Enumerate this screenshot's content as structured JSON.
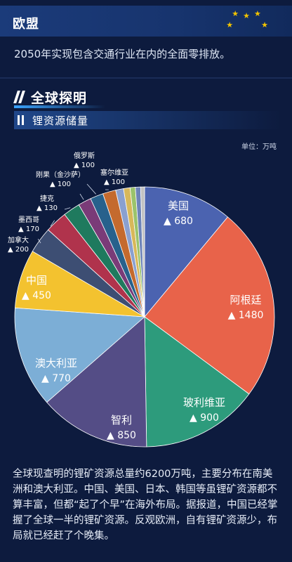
{
  "header": {
    "title": "欧盟",
    "description": "2050年实现包含交通行业在内的全面零排放。"
  },
  "section": {
    "title": "全球探明",
    "subtitle": "锂资源储量"
  },
  "colors": {
    "background": "#0d1b3e",
    "header_bar": "#1b3b7a",
    "stars": "#f2c300",
    "accent_blue": "#3aa3ff"
  },
  "chart_data": {
    "type": "pie",
    "unit": "单位：万吨",
    "start_angle_deg": 0,
    "direction": "clockwise",
    "slices": [
      {
        "label": "美国",
        "value": 680,
        "color": "#4b63b0",
        "label_inside": true
      },
      {
        "label": "阿根廷",
        "value": 1480,
        "color": "#e8634a",
        "label_inside": true
      },
      {
        "label": "玻利维亚",
        "value": 900,
        "color": "#2d9b7c",
        "label_inside": true
      },
      {
        "label": "智利",
        "value": 850,
        "color": "#544d86",
        "label_inside": true
      },
      {
        "label": "澳大利亚",
        "value": 770,
        "color": "#7caed6",
        "label_inside": true
      },
      {
        "label": "中国",
        "value": 450,
        "color": "#f3c22f",
        "label_inside": true
      },
      {
        "label": "加拿大",
        "value": 200,
        "color": "#3d4e73",
        "label_inside": false
      },
      {
        "label": "墨西哥",
        "value": 170,
        "color": "#b0334c",
        "label_inside": false
      },
      {
        "label": "捷克",
        "value": 130,
        "color": "#1f7a5e",
        "label_inside": false
      },
      {
        "label": "刚果（金沙萨）",
        "value": 100,
        "color": "#7a3b78",
        "label_inside": false
      },
      {
        "label": "俄罗斯",
        "value": 100,
        "color": "#27618c",
        "label_inside": false
      },
      {
        "label": "塞尔维亚",
        "value": 100,
        "color": "#c46a2e",
        "label_inside": false
      },
      {
        "value": 60,
        "color": "#8aa0cf"
      },
      {
        "value": 50,
        "color": "#d8b85a"
      },
      {
        "value": 40,
        "color": "#9bc36b"
      },
      {
        "value": 40,
        "color": "#6e84b8"
      },
      {
        "value": 30,
        "color": "#c2c2c2"
      }
    ]
  },
  "footer": {
    "text": "全球现查明的锂矿资源总量约6200万吨，主要分布在南美洲和澳大利亚。中国、美国、日本、韩国等虽锂矿资源都不算丰富，但都“起了个早”在海外布局。据报道，中国已经掌握了全球一半的锂矿资源。反观欧洲，自有锂矿资源少，布局就已经赶了个晚集。"
  }
}
